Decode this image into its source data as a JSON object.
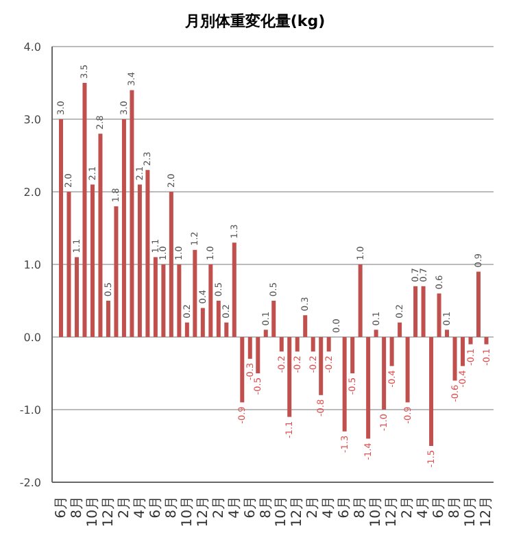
{
  "chart_data": {
    "type": "bar",
    "title": "月別体重変化量(kg)",
    "categories": [
      "6月",
      null,
      "8月",
      null,
      "10月",
      null,
      "12月",
      null,
      "2月",
      null,
      "4月",
      null,
      "6月",
      null,
      "8月",
      null,
      "10月",
      null,
      "12月",
      null,
      "2月",
      null,
      "4月",
      null,
      "6月",
      null,
      "8月",
      null,
      "10月",
      null,
      "12月",
      null,
      "2月",
      null,
      "4月",
      null,
      "6月",
      null,
      "8月",
      null,
      "10月",
      null,
      "12月",
      null,
      "2月",
      null,
      "4月",
      null,
      "6月",
      null,
      "8月",
      null,
      "10月",
      null,
      "12月"
    ],
    "values": [
      3.0,
      2.0,
      1.1,
      3.5,
      2.1,
      2.8,
      0.5,
      1.8,
      3.0,
      3.4,
      2.1,
      2.3,
      1.1,
      1.0,
      2.0,
      1.0,
      0.2,
      1.2,
      0.4,
      1.0,
      0.5,
      0.2,
      1.3,
      -0.9,
      -0.3,
      -0.5,
      0.1,
      0.5,
      -0.2,
      -1.1,
      -0.2,
      0.3,
      -0.2,
      -0.8,
      -0.2,
      0.0,
      -1.3,
      -0.5,
      1.0,
      -1.4,
      0.1,
      -1.0,
      -0.4,
      0.2,
      -0.9,
      0.7,
      0.7,
      -1.5,
      0.6,
      0.1,
      -0.6,
      -0.4,
      -0.1,
      0.9,
      -0.1
    ],
    "value_labels": [
      "3.0",
      "2.0",
      "1.1",
      "3.5",
      "2.1",
      "2.8",
      "0.5",
      "1.8",
      "3.0",
      "3.4",
      "2.1",
      "2.3",
      "1.1",
      "1.0",
      "2.0",
      "1.0",
      "0.2",
      "1.2",
      "0.4",
      "1.0",
      "0.5",
      "0.2",
      "1.3",
      "-0.9",
      "-0.3",
      "-0.5",
      "0.1",
      "0.5",
      "-0.2",
      "-1.1",
      "-0.2",
      "0.3",
      "-0.2",
      "-0.8",
      "-0.2",
      "0.0",
      "-1.3",
      "-0.5",
      "1.0",
      "-1.4",
      "0.1",
      "-1.0",
      "-0.4",
      "0.2",
      "-0.9",
      "0.7",
      "0.7",
      "-1.5",
      "0.6",
      "0.1",
      "-0.6",
      "-0.4",
      "-0.1",
      "0.9",
      "-0.1"
    ],
    "color": "#c0504d",
    "ylim": [
      -2,
      4
    ],
    "yticks": [
      {
        "value": -2,
        "label": "-2.0"
      },
      {
        "value": -1,
        "label": "-1.0"
      },
      {
        "value": 0,
        "label": "0.0"
      },
      {
        "value": 1,
        "label": "1.0"
      },
      {
        "value": 2,
        "label": "2.0"
      },
      {
        "value": 3,
        "label": "3.0"
      },
      {
        "value": 4,
        "label": "4.0"
      }
    ],
    "grid": "y"
  }
}
